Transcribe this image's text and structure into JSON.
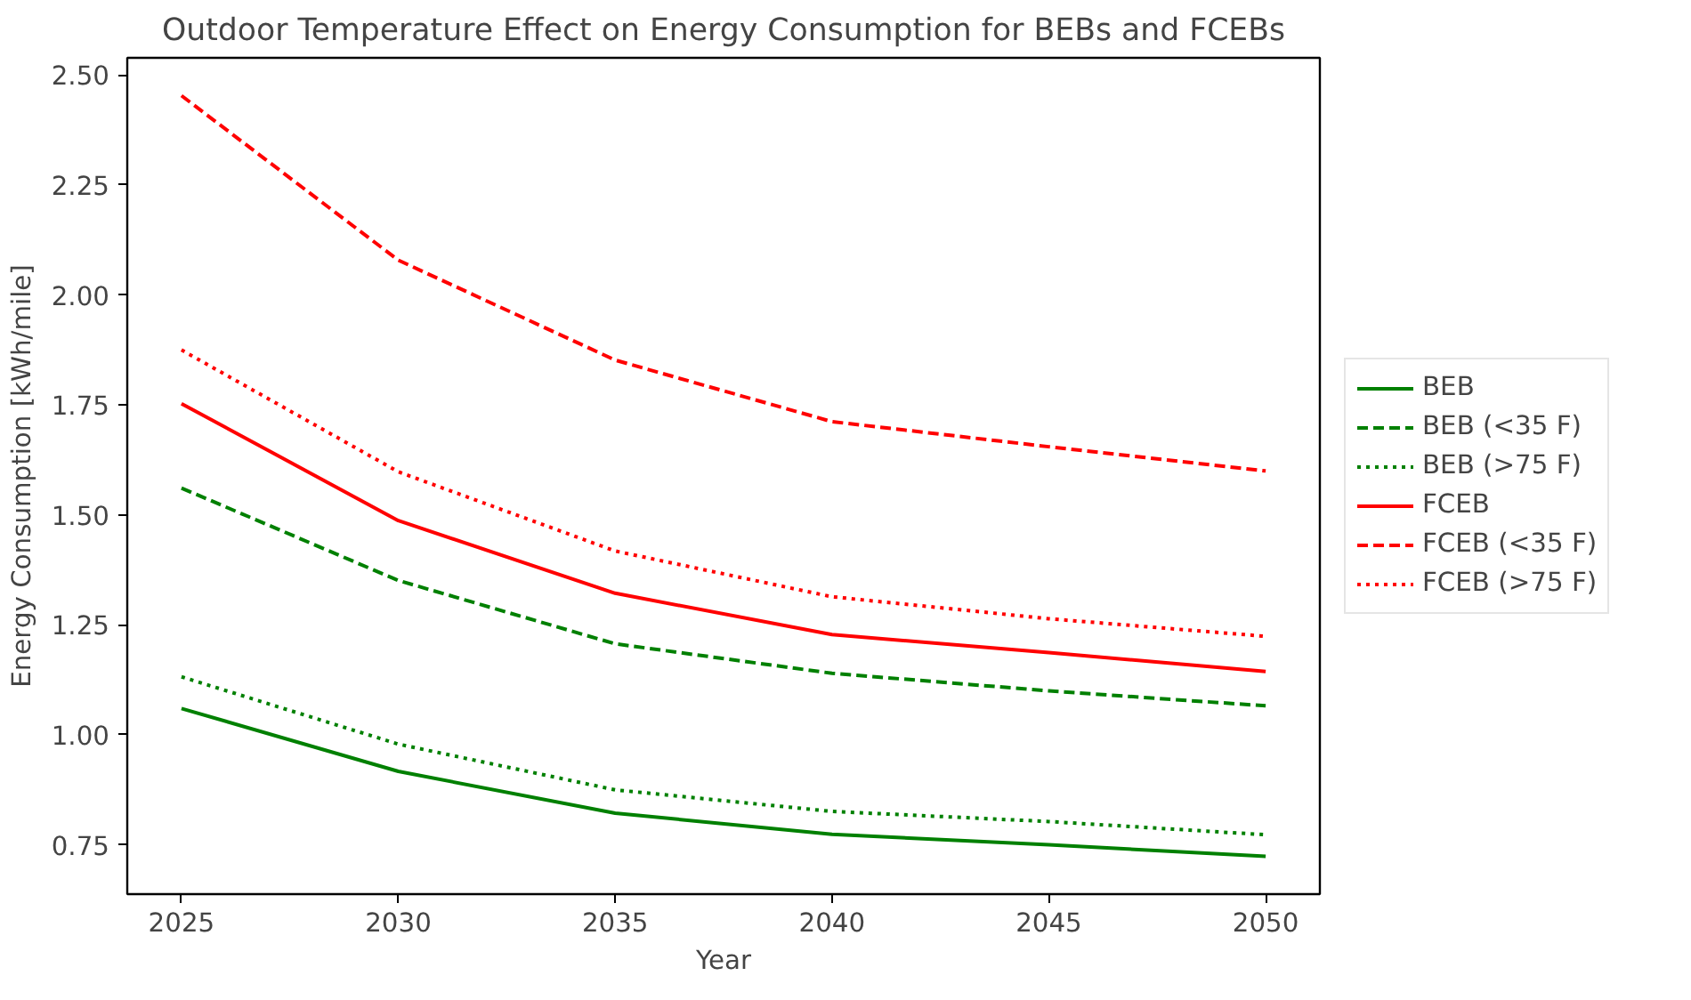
{
  "chart_data": {
    "type": "line",
    "title": "Outdoor Temperature Effect on Energy Consumption for BEBs and FCEBs",
    "xlabel": "Year",
    "ylabel": "Energy Consumption [kWh/mile]",
    "x": [
      2025,
      2030,
      2035,
      2040,
      2045,
      2050
    ],
    "series": [
      {
        "name": "BEB",
        "color": "#008000",
        "line_style": "solid",
        "values": [
          1.06,
          0.917,
          0.822,
          0.774,
          0.75,
          0.724
        ]
      },
      {
        "name": "BEB (<35 F)",
        "color": "#008000",
        "line_style": "dashed",
        "values": [
          1.561,
          1.351,
          1.207,
          1.14,
          1.1,
          1.066
        ]
      },
      {
        "name": "BEB (>75 F)",
        "color": "#008000",
        "line_style": "dotted",
        "values": [
          1.132,
          0.979,
          0.875,
          0.826,
          0.803,
          0.773
        ]
      },
      {
        "name": "FCEB",
        "color": "#ff0000",
        "line_style": "solid",
        "values": [
          1.753,
          1.487,
          1.322,
          1.228,
          1.187,
          1.144
        ]
      },
      {
        "name": "FCEB (<35 F)",
        "color": "#ff0000",
        "line_style": "dashed",
        "values": [
          2.453,
          2.079,
          1.852,
          1.712,
          1.655,
          1.6
        ]
      },
      {
        "name": "FCEB (>75 F)",
        "color": "#ff0000",
        "line_style": "dotted",
        "values": [
          1.875,
          1.598,
          1.418,
          1.314,
          1.264,
          1.224
        ]
      }
    ],
    "xlim": [
      2023.75,
      2051.25
    ],
    "ylim": [
      0.638,
      2.539
    ],
    "xticks": [
      2025,
      2030,
      2035,
      2040,
      2045,
      2050
    ],
    "yticks": [
      {
        "value": 0.75,
        "label": "0.75"
      },
      {
        "value": 1.0,
        "label": "1.00"
      },
      {
        "value": 1.25,
        "label": "1.25"
      },
      {
        "value": 1.5,
        "label": "1.50"
      },
      {
        "value": 1.75,
        "label": "1.75"
      },
      {
        "value": 2.0,
        "label": "2.00"
      },
      {
        "value": 2.25,
        "label": "2.25"
      },
      {
        "value": 2.5,
        "label": "2.50"
      }
    ],
    "grid": false,
    "legend": "right",
    "marker": "none"
  }
}
